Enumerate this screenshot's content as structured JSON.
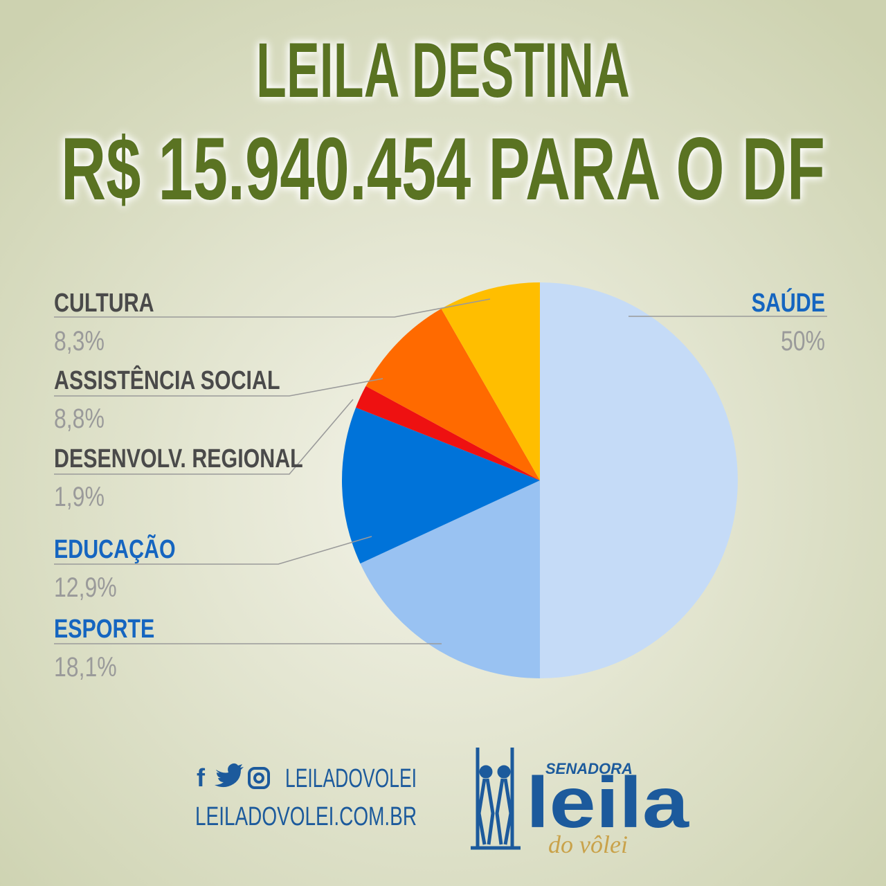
{
  "chart_data": {
    "type": "pie",
    "title": "LEILA DESTINA",
    "subtitle": "R$ 15.940.454 PARA O DF",
    "categories": [
      "SAÚDE",
      "ESPORTE",
      "EDUCAÇÃO",
      "DESENVOLV. REGIONAL",
      "ASSISTÊNCIA SOCIAL",
      "CULTURA"
    ],
    "values": [
      50,
      18.1,
      12.9,
      1.9,
      8.8,
      8.3
    ],
    "value_labels": [
      "50%",
      "18,1%",
      "12,9%",
      "1,9%",
      "8,8%",
      "8,3%"
    ],
    "colors": [
      "#c5dbf7",
      "#99c2f2",
      "#0073d9",
      "#ee1111",
      "#ff6a00",
      "#ffbe00"
    ],
    "label_colors": [
      "#1565c0",
      "#1565c0",
      "#1565c0",
      "#4a4a4a",
      "#4a4a4a",
      "#4a4a4a"
    ]
  },
  "footer": {
    "social": "LEILADOVOLEI",
    "website": "LEILADOVOLEI.COM.BR",
    "logo_top": "SENADORA",
    "logo_name": "leila",
    "logo_sub": "do vôlei"
  }
}
